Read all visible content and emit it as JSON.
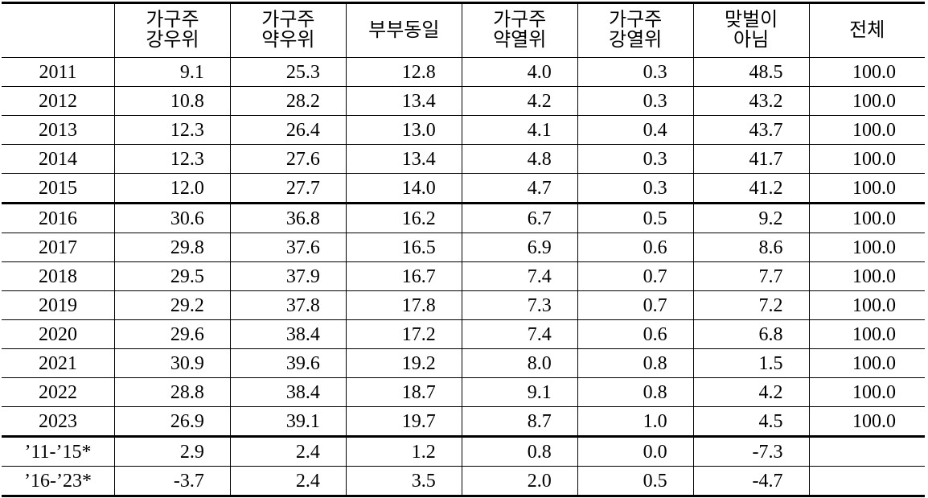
{
  "table": {
    "header": [
      [
        "가구주",
        "강우위"
      ],
      [
        "가구주",
        "약우위"
      ],
      [
        "부부동일"
      ],
      [
        "가구주",
        "약열위"
      ],
      [
        "가구주",
        "강열위"
      ],
      [
        "맞벌이",
        "아님"
      ],
      [
        "전체"
      ]
    ],
    "sections": [
      [
        [
          "2011",
          "9.1",
          "25.3",
          "12.8",
          "4.0",
          "0.3",
          "48.5",
          "100.0"
        ],
        [
          "2012",
          "10.8",
          "28.2",
          "13.4",
          "4.2",
          "0.3",
          "43.2",
          "100.0"
        ],
        [
          "2013",
          "12.3",
          "26.4",
          "13.0",
          "4.1",
          "0.4",
          "43.7",
          "100.0"
        ],
        [
          "2014",
          "12.3",
          "27.6",
          "13.4",
          "4.8",
          "0.3",
          "41.7",
          "100.0"
        ],
        [
          "2015",
          "12.0",
          "27.7",
          "14.0",
          "4.7",
          "0.3",
          "41.2",
          "100.0"
        ]
      ],
      [
        [
          "2016",
          "30.6",
          "36.8",
          "16.2",
          "6.7",
          "0.5",
          "9.2",
          "100.0"
        ],
        [
          "2017",
          "29.8",
          "37.6",
          "16.5",
          "6.9",
          "0.6",
          "8.6",
          "100.0"
        ],
        [
          "2018",
          "29.5",
          "37.9",
          "16.7",
          "7.4",
          "0.7",
          "7.7",
          "100.0"
        ],
        [
          "2019",
          "29.2",
          "37.8",
          "17.8",
          "7.3",
          "0.7",
          "7.2",
          "100.0"
        ],
        [
          "2020",
          "29.6",
          "38.4",
          "17.2",
          "7.4",
          "0.6",
          "6.8",
          "100.0"
        ],
        [
          "2021",
          "30.9",
          "39.6",
          "19.2",
          "8.0",
          "0.8",
          "1.5",
          "100.0"
        ],
        [
          "2022",
          "28.8",
          "38.4",
          "18.7",
          "9.1",
          "0.8",
          "4.2",
          "100.0"
        ],
        [
          "2023",
          "26.9",
          "39.1",
          "19.7",
          "8.7",
          "1.0",
          "4.5",
          "100.0"
        ]
      ],
      [
        [
          "’11-’15*",
          "2.9",
          "2.4",
          "1.2",
          "0.8",
          "0.0",
          "-7.3"
        ],
        [
          "’16-’23*",
          "-3.7",
          "2.4",
          "3.5",
          "2.0",
          "0.5",
          "-4.7"
        ]
      ]
    ]
  }
}
